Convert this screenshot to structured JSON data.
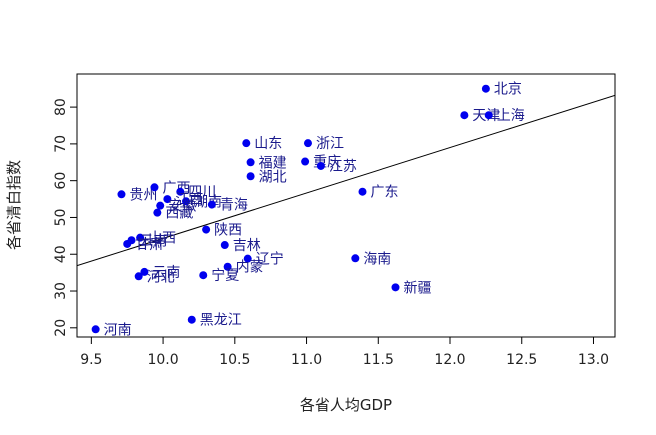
{
  "chart_data": {
    "type": "scatter",
    "title": "",
    "xlabel": "各省人均GDP",
    "ylabel": "各省清白指数",
    "xlim": [
      9.4,
      13.15
    ],
    "ylim": [
      17.5,
      89
    ],
    "xticks": [
      9.5,
      10.0,
      10.5,
      11.0,
      11.5,
      12.0,
      12.5,
      13.0
    ],
    "xtick_labels": [
      "9.5",
      "10.0",
      "10.5",
      "11.0",
      "11.5",
      "12.0",
      "12.5",
      "13.0"
    ],
    "yticks": [
      20,
      30,
      40,
      50,
      60,
      70,
      80
    ],
    "ytick_labels": [
      "20",
      "30",
      "40",
      "50",
      "60",
      "70",
      "80"
    ],
    "point_color": "#0000ee",
    "label_color": "#1a1a8c",
    "line_color": "#000000",
    "regression_line": {
      "x": [
        9.4,
        13.15
      ],
      "y": [
        36.9,
        83.2
      ]
    },
    "points": [
      {
        "label": "北京",
        "x": 12.25,
        "y": 85.0
      },
      {
        "label": "天津",
        "x": 12.1,
        "y": 77.8
      },
      {
        "label": "上海",
        "x": 12.27,
        "y": 77.8
      },
      {
        "label": "山东",
        "x": 10.58,
        "y": 70.2
      },
      {
        "label": "浙江",
        "x": 11.01,
        "y": 70.2
      },
      {
        "label": "福建",
        "x": 10.61,
        "y": 65.0
      },
      {
        "label": "重庆",
        "x": 10.99,
        "y": 65.2
      },
      {
        "label": "江苏",
        "x": 11.1,
        "y": 64.0
      },
      {
        "label": "湖北",
        "x": 10.61,
        "y": 61.2
      },
      {
        "label": "广东",
        "x": 11.39,
        "y": 57.0
      },
      {
        "label": "贵州",
        "x": 9.71,
        "y": 56.3
      },
      {
        "label": "广西",
        "x": 9.94,
        "y": 58.2
      },
      {
        "label": "四川",
        "x": 10.12,
        "y": 57.0
      },
      {
        "label": "江西",
        "x": 10.03,
        "y": 55.0
      },
      {
        "label": "湖南",
        "x": 10.16,
        "y": 54.4
      },
      {
        "label": "青海",
        "x": 10.34,
        "y": 53.5
      },
      {
        "label": "安徽",
        "x": 9.98,
        "y": 53.2
      },
      {
        "label": "西藏",
        "x": 9.96,
        "y": 51.3
      },
      {
        "label": "陕西",
        "x": 10.3,
        "y": 46.7
      },
      {
        "label": "山西",
        "x": 9.84,
        "y": 44.5
      },
      {
        "label": "云南",
        "x": 9.78,
        "y": 43.8
      },
      {
        "label": "甘肃",
        "x": 9.75,
        "y": 42.8
      },
      {
        "label": "吉林",
        "x": 10.43,
        "y": 42.5
      },
      {
        "label": "辽宁",
        "x": 10.59,
        "y": 38.8
      },
      {
        "label": "海南",
        "x": 11.34,
        "y": 38.9
      },
      {
        "label": "内蒙",
        "x": 10.45,
        "y": 36.6
      },
      {
        "label": "云南",
        "x": 9.87,
        "y": 35.2
      },
      {
        "label": "河北",
        "x": 9.83,
        "y": 34.0
      },
      {
        "label": "宁夏",
        "x": 10.28,
        "y": 34.3
      },
      {
        "label": "新疆",
        "x": 11.62,
        "y": 31.0
      },
      {
        "label": "黑龙江",
        "x": 10.2,
        "y": 22.2
      },
      {
        "label": "河南",
        "x": 9.53,
        "y": 19.6
      }
    ]
  }
}
